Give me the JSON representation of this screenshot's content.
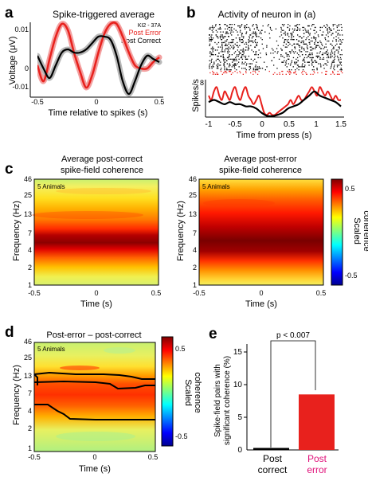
{
  "panels": {
    "a": {
      "letter": "a",
      "title": "Spike-triggered average",
      "ylabel": "Voltage (μV)",
      "xlabel": "Time relative to spikes (s)",
      "unit_label": "KI2 - 37A",
      "xticks": [
        "-0.5",
        "0",
        "0.5"
      ],
      "yticks": [
        "0.01",
        "0",
        "-0.01"
      ]
    },
    "b": {
      "letter": "b",
      "title": "Activity of neuron in (a)",
      "ylabel": "Spikes/s",
      "xlabel": "Time from press (s)",
      "ytick": "8",
      "xticks": [
        "-1",
        "-0.5",
        "0",
        "0.5",
        "1",
        "1.5"
      ]
    },
    "c": {
      "letter": "c",
      "left_title_1": "Average post-correct",
      "left_title_2": "spike-field coherence",
      "right_title_1": "Average post-error",
      "right_title_2": "spike-field coherence",
      "animals": "5 Animals",
      "ylabel": "Frequency (Hz)",
      "xlabel": "Time (s)",
      "yticks": [
        "46",
        "25",
        "13",
        "7",
        "4",
        "2",
        "1"
      ],
      "xticks": [
        "-0.5",
        "0",
        "0.5"
      ],
      "colorbar_ticks": [
        "0.5",
        "-0.5"
      ],
      "colorbar_label_1": "Scaled",
      "colorbar_label_2": "coherence"
    },
    "d": {
      "letter": "d",
      "title": "Post-error – post-correct",
      "animals": "5 Animals",
      "ylabel": "Frequency (Hz)",
      "xlabel": "Time (s)",
      "yticks": [
        "46",
        "25",
        "13",
        "7",
        "4",
        "2",
        "1"
      ],
      "xticks": [
        "-0.5",
        "0",
        "0.5"
      ],
      "colorbar_ticks": [
        "0.5",
        "-0.5"
      ],
      "colorbar_label_1": "Scaled",
      "colorbar_label_2": "coherence"
    },
    "e": {
      "letter": "e",
      "ylabel_1": "Spike-field pairs with",
      "ylabel_2": "significant coherence (%)",
      "yticks": [
        "15",
        "10",
        "5",
        "0"
      ],
      "sig_label": "p < 0.007",
      "cat1_line1": "Post",
      "cat1_line2": "correct",
      "cat2_line1": "Post",
      "cat2_line2": "error"
    }
  },
  "colors": {
    "post_error": "#e8211d",
    "post_correct": "#000000",
    "error_label": "#e0117a"
  },
  "chart_data": [
    {
      "type": "line",
      "panel": "a",
      "xlim": [
        -0.55,
        0.5
      ],
      "ylim": [
        -0.012,
        0.012
      ],
      "series": [
        {
          "name": "Post Error",
          "x": [
            -0.5,
            -0.45,
            -0.4,
            -0.35,
            -0.3,
            -0.25,
            -0.2,
            -0.15,
            -0.1,
            -0.05,
            0,
            0.05,
            0.1,
            0.15,
            0.2,
            0.25,
            0.3,
            0.35,
            0.4,
            0.45,
            0.5
          ],
          "y": [
            -0.002,
            -0.007,
            0,
            0.007,
            0.011,
            0.009,
            0.002,
            -0.004,
            -0.009,
            -0.005,
            0.002,
            0.008,
            0.011,
            0.011,
            0.007,
            0.002,
            -0.002,
            -0.003,
            -0.003,
            -0.001,
            0.0005
          ]
        },
        {
          "name": "Post Correct",
          "x": [
            -0.5,
            -0.45,
            -0.4,
            -0.35,
            -0.3,
            -0.25,
            -0.2,
            -0.15,
            -0.1,
            -0.05,
            0,
            0.05,
            0.1,
            0.15,
            0.2,
            0.25,
            0.3,
            0.35,
            0.4,
            0.45,
            0.5
          ],
          "y": [
            0.001,
            -0.003,
            -0.006,
            -0.002,
            0.002,
            0.003,
            0.002,
            0.002,
            0.003,
            0.005,
            0.007,
            0.007,
            0.006,
            0.001,
            -0.007,
            -0.011,
            -0.007,
            -0.002,
            0.001,
            0,
            -0.001
          ]
        }
      ]
    },
    {
      "type": "line",
      "panel": "b",
      "xlim": [
        -1,
        1.5
      ],
      "ylim": [
        0,
        8
      ],
      "series": [
        {
          "name": "Post Error",
          "x": [
            -1,
            -0.95,
            -0.9,
            -0.85,
            -0.8,
            -0.75,
            -0.7,
            -0.65,
            -0.6,
            -0.55,
            -0.5,
            -0.45,
            -0.4,
            -0.35,
            -0.3,
            -0.25,
            -0.2,
            -0.15,
            -0.1,
            -0.05,
            0,
            0.05,
            0.1,
            0.15,
            0.2,
            0.25,
            0.3,
            0.35,
            0.4,
            0.45,
            0.5,
            0.55,
            0.6,
            0.65,
            0.7,
            0.75,
            0.8,
            0.85,
            0.9,
            0.95,
            1,
            1.05,
            1.1,
            1.15,
            1.2,
            1.25,
            1.3,
            1.35,
            1.4,
            1.45,
            1.5
          ],
          "y": [
            5,
            4,
            6,
            7,
            5,
            4,
            6,
            5,
            4,
            6,
            7,
            5,
            4,
            6,
            7,
            5,
            4,
            3,
            4,
            5,
            3,
            1,
            0.5,
            1,
            0.5,
            0.5,
            1,
            1.5,
            2,
            2.5,
            3,
            4,
            3,
            4,
            5,
            4,
            4,
            5,
            6,
            7,
            6,
            5,
            7,
            6,
            5,
            6,
            5,
            4,
            5,
            4,
            4
          ]
        },
        {
          "name": "Post Correct",
          "x": [
            -1,
            -0.9,
            -0.8,
            -0.7,
            -0.6,
            -0.5,
            -0.4,
            -0.3,
            -0.2,
            -0.1,
            0,
            0.1,
            0.2,
            0.3,
            0.4,
            0.5,
            0.6,
            0.7,
            0.8,
            0.9,
            1,
            1.1,
            1.2,
            1.3,
            1.4,
            1.5
          ],
          "y": [
            3.5,
            4,
            3.5,
            3,
            3.5,
            3,
            3,
            2.5,
            2.5,
            2,
            1,
            0.3,
            0.2,
            0.5,
            1,
            2,
            2.5,
            3,
            4,
            5,
            6,
            5,
            4.5,
            4,
            3.5,
            2.5
          ]
        }
      ]
    },
    {
      "type": "heatmap",
      "panel": "c-left",
      "xlim": [
        -0.5,
        0.5
      ],
      "yticks": [
        46,
        25,
        13,
        7,
        4,
        2,
        1
      ],
      "colorbar_range": [
        -0.5,
        0.5
      ]
    },
    {
      "type": "heatmap",
      "panel": "c-right",
      "xlim": [
        -0.5,
        0.5
      ],
      "yticks": [
        46,
        25,
        13,
        7,
        4,
        2,
        1
      ],
      "colorbar_range": [
        -0.5,
        0.5
      ]
    },
    {
      "type": "heatmap",
      "panel": "d",
      "xlim": [
        -0.5,
        0.5
      ],
      "yticks": [
        46,
        25,
        13,
        7,
        4,
        2,
        1
      ],
      "colorbar_range": [
        -0.5,
        0.5
      ]
    },
    {
      "type": "bar",
      "panel": "e",
      "categories": [
        "Post correct",
        "Post error"
      ],
      "values": [
        0.2,
        8.5
      ],
      "ylim": [
        0,
        17
      ]
    }
  ]
}
